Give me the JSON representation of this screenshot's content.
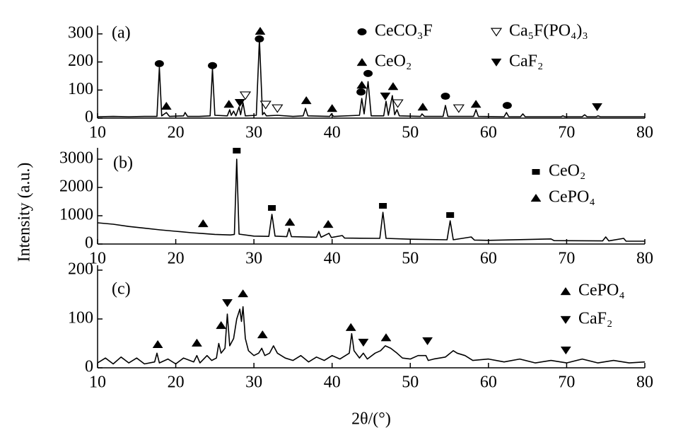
{
  "chart_data": [
    {
      "type": "line",
      "panel_label": "(a)",
      "xlim": [
        10,
        80
      ],
      "xticks": [
        10,
        20,
        30,
        40,
        50,
        60,
        70,
        80
      ],
      "ylim": [
        0,
        330
      ],
      "yticks": [
        0,
        100,
        200,
        300
      ],
      "series": [
        {
          "color": "#000000",
          "x": [
            10,
            12,
            14,
            16,
            17.6,
            17.9,
            18.2,
            18.8,
            19.2,
            21,
            21.2,
            21.5,
            23,
            24.4,
            24.7,
            25,
            26.6,
            26.9,
            27.1,
            27.4,
            27.7,
            28.1,
            28.3,
            28.6,
            28.9,
            30.3,
            30.7,
            31.1,
            31.3,
            31.6,
            33,
            35,
            36.3,
            36.6,
            36.9,
            39.7,
            39.9,
            40.2,
            43.5,
            43.8,
            44.1,
            44.6,
            45,
            46.6,
            46.9,
            47.2,
            47.7,
            48,
            48.3,
            48.6,
            51.3,
            51.5,
            51.8,
            54.2,
            54.5,
            54.8,
            58.1,
            58.4,
            58.7,
            62,
            62.3,
            62.6,
            64.1,
            64.4,
            64.7,
            69.3,
            69.5,
            69.8,
            72,
            72.3,
            72.6,
            73.8,
            74,
            74.3,
            80
          ],
          "values": [
            5,
            6,
            5,
            6,
            6,
            180,
            8,
            20,
            6,
            8,
            20,
            6,
            6,
            8,
            175,
            10,
            8,
            30,
            10,
            25,
            8,
            40,
            12,
            55,
            8,
            10,
            280,
            12,
            20,
            8,
            10,
            6,
            8,
            35,
            8,
            6,
            15,
            6,
            10,
            70,
            15,
            130,
            8,
            8,
            60,
            10,
            80,
            12,
            30,
            8,
            6,
            15,
            6,
            6,
            45,
            6,
            6,
            30,
            6,
            5,
            20,
            5,
            5,
            15,
            5,
            5,
            8,
            5,
            5,
            12,
            5,
            5,
            8,
            5,
            5
          ]
        }
      ],
      "markers": [
        {
          "name": "CeCO₃F",
          "symbol": "circle",
          "x": [
            17.9,
            24.7,
            30.7,
            43.7,
            44.6,
            54.5,
            62.4
          ],
          "y": [
            194,
            187,
            282,
            93,
            159,
            78,
            45
          ]
        },
        {
          "name": "Ca₅F(PO₄)₃",
          "symbol": "triangle-down-open",
          "x": [
            28.9,
            31.5,
            33,
            48.4,
            56.2
          ],
          "y": [
            81,
            48,
            35,
            53,
            35
          ]
        },
        {
          "name": "CeO₂",
          "symbol": "triangle-up",
          "x": [
            18.8,
            26.8,
            30.8,
            36.7,
            40,
            43.8,
            47.8,
            51.6,
            58.4
          ],
          "y": [
            43,
            50,
            310,
            63,
            35,
            118,
            113,
            40,
            50
          ]
        },
        {
          "name": "CaF₂",
          "symbol": "triangle-down",
          "x": [
            28.2,
            46.8,
            73.9
          ],
          "y": [
            55,
            78,
            40
          ]
        }
      ]
    },
    {
      "type": "line",
      "panel_label": "(b)",
      "ylabel": "Intensity (a.u.)",
      "xlim": [
        10,
        80
      ],
      "xticks": [
        10,
        20,
        30,
        40,
        50,
        60,
        70,
        80
      ],
      "ylim": [
        0,
        3400
      ],
      "yticks": [
        0,
        1000,
        2000,
        3000
      ],
      "series": [
        {
          "color": "#000000",
          "x": [
            10,
            12,
            14,
            16,
            18,
            20,
            22,
            23.5,
            25,
            27,
            27.5,
            27.8,
            28.1,
            30,
            31.9,
            32.3,
            32.7,
            34.2,
            34.5,
            34.8,
            38,
            38.3,
            38.6,
            39.6,
            39.9,
            41.3,
            41.6,
            46.1,
            46.5,
            46.9,
            50,
            54.7,
            55.1,
            55.5,
            57.8,
            58.2,
            60,
            68,
            68.4,
            74.6,
            75,
            75.4,
            77.3,
            77.6,
            80
          ],
          "values": [
            750,
            700,
            620,
            560,
            500,
            450,
            400,
            370,
            340,
            320,
            340,
            3000,
            350,
            280,
            270,
            1050,
            280,
            260,
            550,
            260,
            240,
            450,
            240,
            380,
            230,
            300,
            210,
            200,
            1120,
            200,
            170,
            150,
            820,
            150,
            250,
            140,
            130,
            180,
            120,
            110,
            250,
            110,
            200,
            100,
            100
          ]
        }
      ],
      "markers": [
        {
          "name": "CeO₂",
          "symbol": "square",
          "x": [
            27.8,
            32.3,
            46.5,
            55.1
          ],
          "y": [
            3300,
            1275,
            1350,
            1025
          ]
        },
        {
          "name": "CePO₄",
          "symbol": "triangle-up",
          "x": [
            23.5,
            34.6,
            39.5
          ],
          "y": [
            725,
            775,
            700
          ]
        }
      ]
    },
    {
      "type": "line",
      "panel_label": "(c)",
      "xlabel": "2θ/(°)",
      "xlim": [
        10,
        80
      ],
      "xticks": [
        10,
        20,
        30,
        40,
        50,
        60,
        70,
        80
      ],
      "ylim": [
        0,
        210
      ],
      "yticks": [
        0,
        100,
        200
      ],
      "series": [
        {
          "color": "#000000",
          "x": [
            10,
            11,
            12,
            13,
            14,
            15,
            16,
            17.3,
            17.6,
            17.9,
            19,
            20,
            21,
            22.3,
            22.7,
            23.1,
            24,
            24.6,
            25.2,
            25.5,
            25.8,
            26.3,
            26.6,
            26.9,
            27.4,
            27.8,
            28.2,
            28.4,
            28.6,
            28.9,
            29.3,
            30,
            30.6,
            31,
            31.4,
            32,
            32.5,
            33,
            34,
            35,
            36,
            37,
            38,
            39,
            40,
            41,
            42.2,
            42.5,
            42.8,
            43.5,
            44,
            44.5,
            45.5,
            46.2,
            46.8,
            47.5,
            48.3,
            49,
            50,
            51,
            52,
            52.3,
            53,
            54.5,
            55.5,
            56,
            57,
            58,
            60,
            62,
            64,
            66,
            68,
            70,
            72,
            74,
            76,
            78,
            80
          ],
          "values": [
            10,
            20,
            8,
            22,
            10,
            20,
            8,
            12,
            30,
            10,
            18,
            8,
            20,
            12,
            25,
            10,
            25,
            15,
            20,
            50,
            30,
            40,
            110,
            45,
            60,
            100,
            120,
            95,
            125,
            60,
            35,
            25,
            30,
            40,
            25,
            30,
            45,
            30,
            20,
            15,
            25,
            12,
            22,
            15,
            25,
            18,
            30,
            70,
            35,
            20,
            30,
            18,
            30,
            35,
            45,
            40,
            30,
            20,
            18,
            25,
            25,
            15,
            18,
            22,
            35,
            30,
            25,
            15,
            18,
            12,
            18,
            10,
            15,
            10,
            18,
            10,
            15,
            10,
            12
          ]
        }
      ],
      "markers": [
        {
          "name": "CePO₄",
          "symbol": "triangle-up",
          "x": [
            17.7,
            22.7,
            25.8,
            28.6,
            31.1,
            42.4,
            46.9
          ],
          "y": [
            48,
            51,
            87,
            152,
            68,
            83,
            62
          ]
        },
        {
          "name": "CaF₂",
          "symbol": "triangle-down",
          "x": [
            26.6,
            44,
            52.2,
            69.9
          ],
          "y": [
            133,
            52,
            55,
            36
          ]
        }
      ]
    }
  ]
}
